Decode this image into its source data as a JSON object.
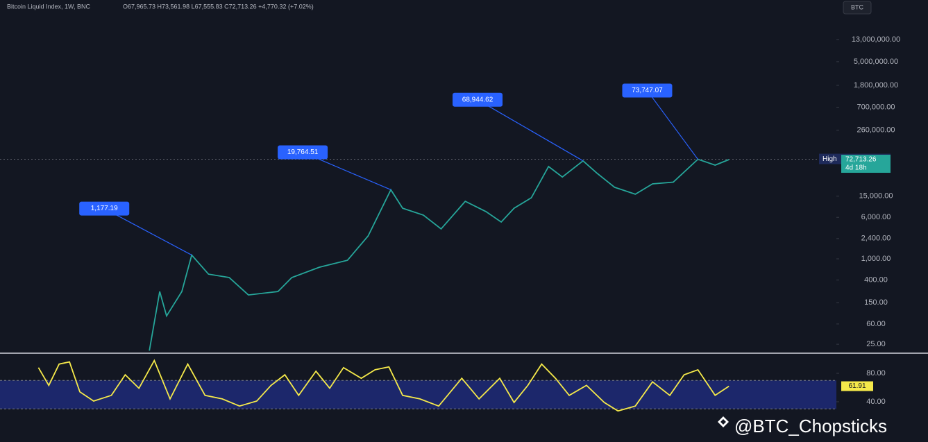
{
  "header": {
    "symbol": "Bitcoin Liquid Index, 1W, BNC",
    "ohlc": "O67,965.73 H73,561.98 L67,555.83 C72,713.26 +4,770.32 (+7.02%)"
  },
  "currency": "BTC",
  "watermark": "@BTC_Chopsticks",
  "chart_data": [
    {
      "type": "line",
      "log_scale": true,
      "xlim": [
        2010.03,
        2027.0
      ],
      "ylim": [
        17.5,
        39400000
      ],
      "yticks": [
        {
          "value": 25,
          "label": "25.00"
        },
        {
          "value": 60,
          "label": "60.00"
        },
        {
          "value": 150,
          "label": "150.00"
        },
        {
          "value": 400,
          "label": "400.00"
        },
        {
          "value": 1000,
          "label": "1,000.00"
        },
        {
          "value": 2400,
          "label": "2,400.00"
        },
        {
          "value": 6000,
          "label": "6,000.00"
        },
        {
          "value": 15000,
          "label": "15,000.00"
        },
        {
          "value": 260000,
          "label": "260,000.00"
        },
        {
          "value": 700000,
          "label": "700,000.00"
        },
        {
          "value": 1800000,
          "label": "1,800,000.00"
        },
        {
          "value": 5000000,
          "label": "5,000,000.00"
        },
        {
          "value": 13000000,
          "label": "13,000,000.00"
        }
      ],
      "series": [
        {
          "color": "#26a69a",
          "x": [
            2013.06,
            2013.27,
            2013.41,
            2013.72,
            2013.92,
            2014.26,
            2014.68,
            2015.07,
            2015.67,
            2015.95,
            2016.51,
            2017.08,
            2017.5,
            2017.96,
            2018.2,
            2018.62,
            2018.98,
            2019.47,
            2019.89,
            2020.2,
            2020.46,
            2020.81,
            2021.16,
            2021.44,
            2021.86,
            2022.15,
            2022.5,
            2022.92,
            2023.27,
            2023.69,
            2024.19,
            2024.54,
            2024.82
          ],
          "values": [
            19,
            244,
            85,
            244,
            1177.19,
            516,
            445,
            210,
            244,
            445,
            697,
            940,
            2690,
            19764.51,
            8900,
            6620,
            3640,
            12000,
            7700,
            4900,
            8900,
            14000,
            53900,
            34300,
            68944.62,
            40000,
            22000,
            16300,
            25500,
            27500,
            73747.07,
            57200,
            72713.26
          ]
        }
      ],
      "annotations": [
        {
          "text": "1,177.19",
          "x": 2013.92,
          "y": 1177.19
        },
        {
          "text": "19,764.51",
          "x": 2017.96,
          "y": 19764.51
        },
        {
          "text": "68,944.62",
          "x": 2021.86,
          "y": 68944.62
        },
        {
          "text": "73,747.07",
          "x": 2024.19,
          "y": 73747.07
        }
      ],
      "high_label": "High",
      "high": {
        "value": 73747.07,
        "label": "73,747.07"
      },
      "last": {
        "value": 72713.26,
        "label": "72,713.26"
      },
      "countdown": "4d 18h"
    },
    {
      "type": "line",
      "xlim": [
        2010.03,
        2027.0
      ],
      "ylim": [
        -16.6,
        105.4
      ],
      "yticks": [
        {
          "value": 80,
          "label": "80.00"
        },
        {
          "value": 40,
          "label": "40.00"
        }
      ],
      "band": [
        30,
        70
      ],
      "series": [
        {
          "color": "#f5e94a",
          "x": [
            2010.81,
            2011.02,
            2011.23,
            2011.44,
            2011.65,
            2011.93,
            2012.29,
            2012.57,
            2012.85,
            2013.16,
            2013.48,
            2013.84,
            2014.19,
            2014.54,
            2014.89,
            2015.24,
            2015.53,
            2015.81,
            2016.09,
            2016.44,
            2016.72,
            2017.0,
            2017.36,
            2017.64,
            2017.92,
            2018.2,
            2018.55,
            2018.93,
            2019.4,
            2019.75,
            2020.17,
            2020.46,
            2020.74,
            2021.02,
            2021.3,
            2021.58,
            2021.93,
            2022.29,
            2022.57,
            2022.92,
            2023.27,
            2023.62,
            2023.91,
            2024.19,
            2024.54,
            2024.82
          ],
          "values": [
            88,
            63,
            93,
            96,
            54,
            41,
            49,
            78,
            59,
            98,
            44,
            93,
            49,
            44,
            34,
            41,
            63,
            78,
            49,
            83,
            59,
            88,
            73,
            85,
            89,
            49,
            44,
            34,
            73,
            44,
            73,
            39,
            63,
            93,
            73,
            49,
            63,
            39,
            27,
            34,
            68,
            49,
            78,
            85,
            49,
            61.91
          ]
        }
      ],
      "last": 61.91
    }
  ]
}
